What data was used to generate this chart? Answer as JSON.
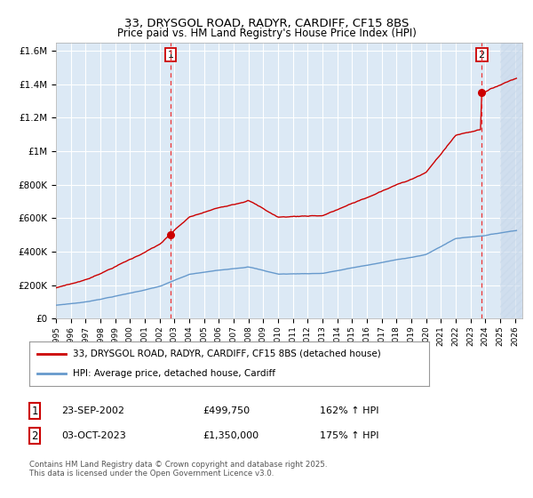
{
  "title": "33, DRYSGOL ROAD, RADYR, CARDIFF, CF15 8BS",
  "subtitle": "Price paid vs. HM Land Registry's House Price Index (HPI)",
  "legend_line1": "33, DRYSGOL ROAD, RADYR, CARDIFF, CF15 8BS (detached house)",
  "legend_line2": "HPI: Average price, detached house, Cardiff",
  "marker1_date_x": 2002.73,
  "marker1_value": 499750,
  "marker1_label": "23-SEP-2002",
  "marker1_price": "£499,750",
  "marker1_hpi": "162% ↑ HPI",
  "marker2_date_x": 2023.75,
  "marker2_value": 1350000,
  "marker2_label": "03-OCT-2023",
  "marker2_price": "£1,350,000",
  "marker2_hpi": "175% ↑ HPI",
  "note": "Contains HM Land Registry data © Crown copyright and database right 2025.\nThis data is licensed under the Open Government Licence v3.0.",
  "ylim": [
    0,
    1650000
  ],
  "xlim_start": 1995.0,
  "xlim_end": 2026.5,
  "bg_color": "#dce9f5",
  "plot_bg_color": "#dce9f5",
  "red_line_color": "#cc0000",
  "blue_line_color": "#6699cc",
  "grid_color": "#ffffff",
  "dashed_color": "#ee3333",
  "hatch_region_start": 2025.0,
  "yticks": [
    0,
    200000,
    400000,
    600000,
    800000,
    1000000,
    1200000,
    1400000,
    1600000
  ]
}
